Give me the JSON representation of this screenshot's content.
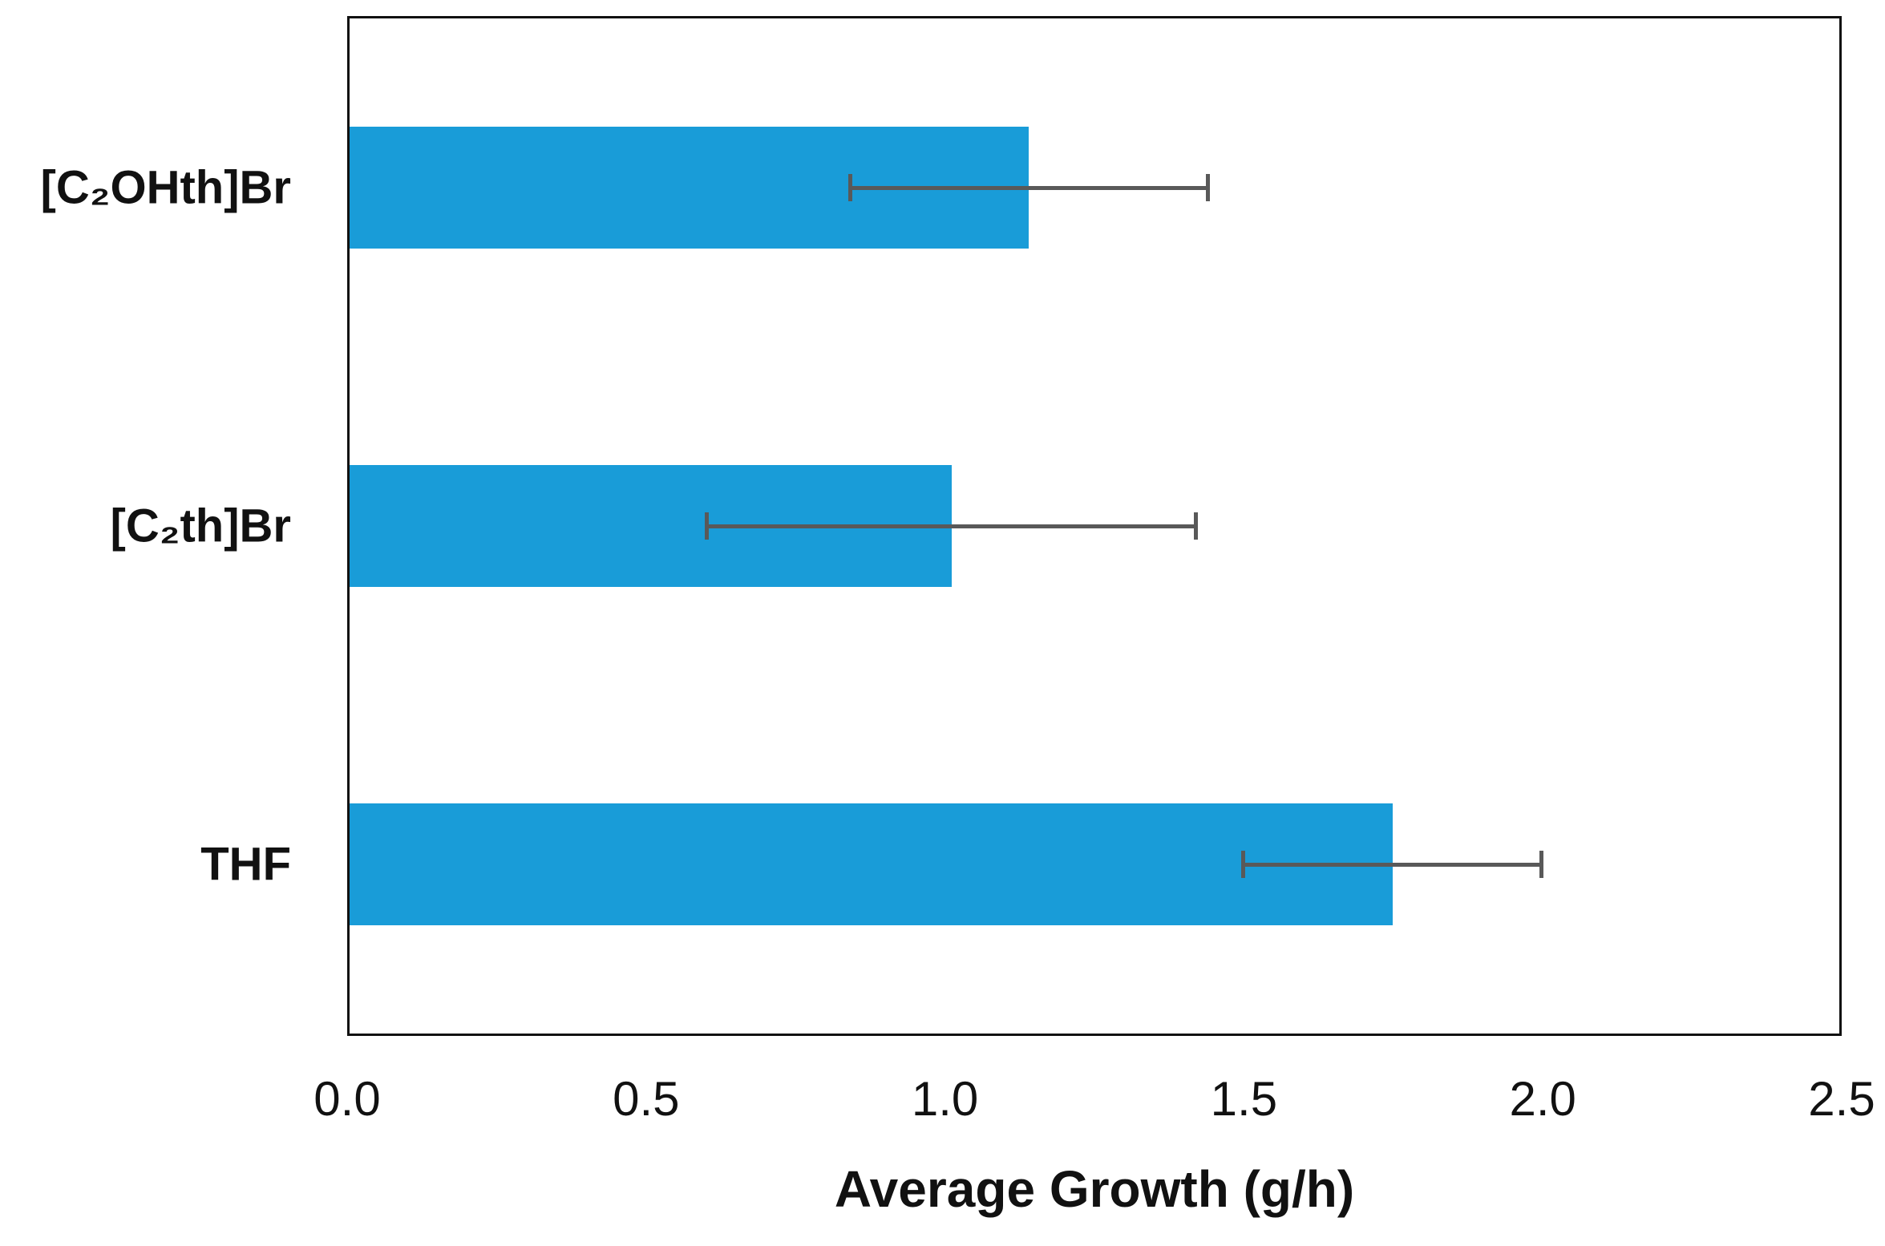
{
  "chart_data": {
    "type": "bar",
    "orientation": "horizontal",
    "title": "",
    "xlabel": "Average Growth (g/h)",
    "ylabel": "",
    "categories": [
      "[C₂OHth]Br",
      "[C₂th]Br",
      "THF"
    ],
    "values": [
      1.14,
      1.01,
      1.75
    ],
    "error_low": [
      0.84,
      0.6,
      1.5
    ],
    "error_high": [
      1.44,
      1.42,
      2.0
    ],
    "xlim": [
      0,
      2.5
    ],
    "xticks": [
      "0.0",
      "0.5",
      "1.0",
      "1.5",
      "2.0",
      "2.5"
    ],
    "grid": false,
    "legend": "none",
    "bar_color": "#199cd8",
    "error_color": "#595959",
    "axis_color": "#111111",
    "text_color": "#111111"
  }
}
